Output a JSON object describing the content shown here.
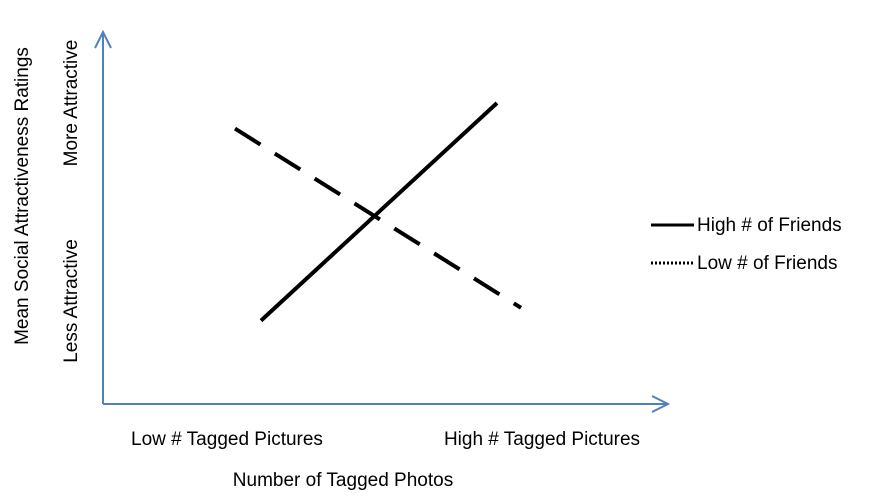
{
  "colors": {
    "axis": "#4f81bd",
    "series": "#000000"
  },
  "chart_data": {
    "type": "line",
    "xlabel": "Number of Tagged Photos",
    "ylabel": "Mean Social Attractiveness Ratings",
    "categories": [
      "Low # Tagged Pictures",
      "High # Tagged Pictures"
    ],
    "y_tick_labels": [
      "Less Attractive",
      "More Attractive"
    ],
    "ylim": [
      0,
      1
    ],
    "grid": false,
    "legend_position": "right",
    "series": [
      {
        "name": "High # of Friends",
        "values": [
          0.15,
          1.0
        ],
        "line_style": "solid"
      },
      {
        "name": "Low # of Friends",
        "values": [
          0.9,
          0.2
        ],
        "line_style": "dashed"
      }
    ]
  }
}
